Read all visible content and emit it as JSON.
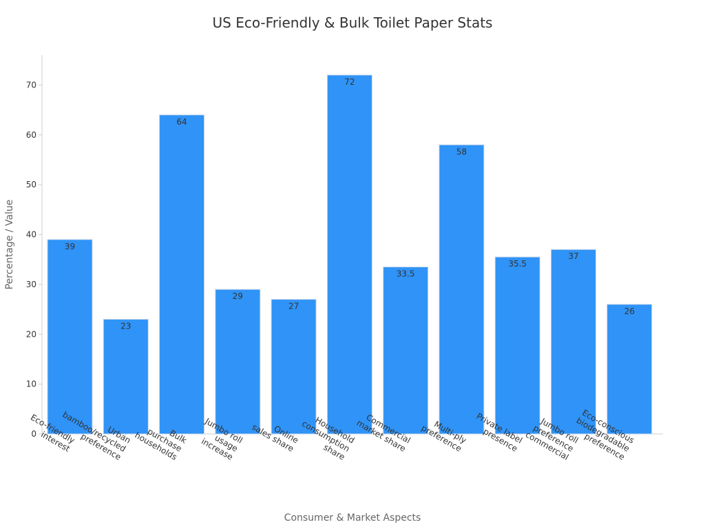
{
  "colors": {
    "bar": "#2f93f7",
    "bar_stroke": "#c9d6ea",
    "axis": "#cccccc",
    "text": "#333333",
    "axis_label": "#666666"
  },
  "chart_data": {
    "type": "bar",
    "title": "US Eco-Friendly & Bulk Toilet Paper Stats",
    "xlabel": "Consumer & Market Aspects",
    "ylabel": "Percentage / Value",
    "ylim": [
      0,
      76
    ],
    "yticks": [
      0,
      10,
      20,
      30,
      40,
      50,
      60,
      70
    ],
    "grid": false,
    "categories": [
      [
        "Eco-friendly",
        "interest"
      ],
      [
        "Urban",
        "bamboo/recycled",
        "preference"
      ],
      [
        "Bulk",
        "purchase",
        "households"
      ],
      [
        "Jumbo roll",
        "usage",
        "increase"
      ],
      [
        "Online",
        "sales share"
      ],
      [
        "Household",
        "consumption",
        "share"
      ],
      [
        "Commercial",
        "market share"
      ],
      [
        "Multi-ply",
        "preference"
      ],
      [
        "Private label",
        "presence"
      ],
      [
        "Jumbo roll",
        "preference",
        "commercial"
      ],
      [
        "Eco-conscious",
        "biodegradable",
        "preference"
      ]
    ],
    "values": [
      39,
      23,
      64,
      29,
      27,
      72,
      33.5,
      58,
      35.5,
      37,
      26
    ],
    "value_labels": [
      "39",
      "23",
      "64",
      "29",
      "27",
      "72",
      "33.5",
      "58",
      "35.5",
      "37",
      "26"
    ]
  }
}
